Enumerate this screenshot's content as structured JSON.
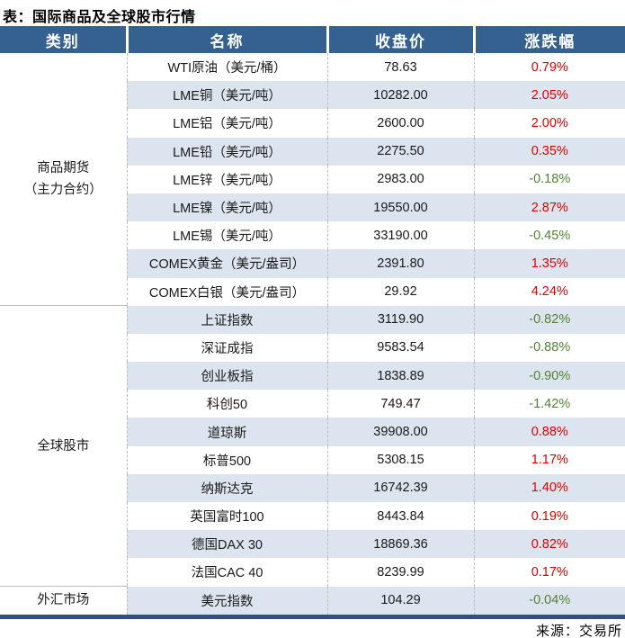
{
  "title": "表：国际商品及全球股市行情",
  "source": "来源：交易所",
  "colors": {
    "header_bg": "#34618F",
    "stripe_bg": "#DCE4EF",
    "up_red": "#DC0000",
    "down_green": "#548235",
    "bottom_bar": "#2F4E8C",
    "divider_gray": "#BFBFBF"
  },
  "table": {
    "headers": [
      "类别",
      "名称",
      "收盘价",
      "涨跌幅"
    ],
    "sections": [
      {
        "category_lines": [
          "商品期货",
          "（主力合约）"
        ],
        "rows": [
          {
            "name": "WTI原油（美元/桶）",
            "close": "78.63",
            "change": "0.79%",
            "dir": "up"
          },
          {
            "name": "LME铜（美元/吨）",
            "close": "10282.00",
            "change": "2.05%",
            "dir": "up"
          },
          {
            "name": "LME铝（美元/吨）",
            "close": "2600.00",
            "change": "2.00%",
            "dir": "up"
          },
          {
            "name": "LME铅（美元/吨）",
            "close": "2275.50",
            "change": "0.35%",
            "dir": "up"
          },
          {
            "name": "LME锌（美元/吨）",
            "close": "2983.00",
            "change": "-0.18%",
            "dir": "down"
          },
          {
            "name": "LME镍（美元/吨）",
            "close": "19550.00",
            "change": "2.87%",
            "dir": "up"
          },
          {
            "name": "LME锡（美元/吨）",
            "close": "33190.00",
            "change": "-0.45%",
            "dir": "down"
          },
          {
            "name": "COMEX黄金（美元/盎司）",
            "close": "2391.80",
            "change": "1.35%",
            "dir": "up"
          },
          {
            "name": "COMEX白银（美元/盎司）",
            "close": "29.92",
            "change": "4.24%",
            "dir": "up"
          }
        ]
      },
      {
        "category_lines": [
          "全球股市"
        ],
        "rows": [
          {
            "name": "上证指数",
            "close": "3119.90",
            "change": "-0.82%",
            "dir": "down"
          },
          {
            "name": "深证成指",
            "close": "9583.54",
            "change": "-0.88%",
            "dir": "down"
          },
          {
            "name": "创业板指",
            "close": "1838.89",
            "change": "-0.90%",
            "dir": "down"
          },
          {
            "name": "科创50",
            "close": "749.47",
            "change": "-1.42%",
            "dir": "down"
          },
          {
            "name": "道琼斯",
            "close": "39908.00",
            "change": "0.88%",
            "dir": "up"
          },
          {
            "name": "标普500",
            "close": "5308.15",
            "change": "1.17%",
            "dir": "up"
          },
          {
            "name": "纳斯达克",
            "close": "16742.39",
            "change": "1.40%",
            "dir": "up"
          },
          {
            "name": "英国富时100",
            "close": "8443.84",
            "change": "0.19%",
            "dir": "up"
          },
          {
            "name": "德国DAX 30",
            "close": "18869.36",
            "change": "0.82%",
            "dir": "up"
          },
          {
            "name": "法国CAC 40",
            "close": "8239.99",
            "change": "0.17%",
            "dir": "up"
          }
        ]
      },
      {
        "category_lines": [
          "外汇市场"
        ],
        "rows": [
          {
            "name": "美元指数",
            "close": "104.29",
            "change": "-0.04%",
            "dir": "down"
          }
        ]
      }
    ]
  }
}
